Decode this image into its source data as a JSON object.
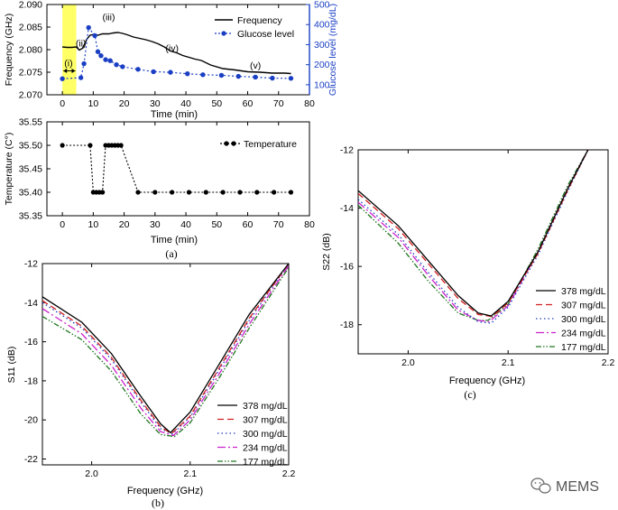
{
  "chart_data": [
    {
      "type": "line",
      "title": "",
      "xlabel": "Time (min)",
      "ylabel": "Frequency (GHz)",
      "ylabel_right": "Glucose level (mg/dL)",
      "xlim": [
        -5,
        80
      ],
      "ylim": [
        2.07,
        2.09
      ],
      "ylim_right": [
        50,
        500
      ],
      "xticks": [
        0,
        10,
        20,
        30,
        40,
        50,
        60,
        70,
        80
      ],
      "yticks": [
        2.07,
        2.075,
        2.08,
        2.085,
        2.09
      ],
      "ytick_labels": [
        "2.070",
        "2.075",
        "2.080",
        "2.085",
        "2.090"
      ],
      "yticks_right": [
        100,
        200,
        300,
        400,
        500
      ],
      "legend": [
        "Frequency",
        "Glucose level"
      ],
      "legend_position": "top-right",
      "colors": {
        "frequency": "#000000",
        "glucose": "#1a3fc4",
        "highlight": "#ffff66",
        "right_axis": "#1a3fc4"
      },
      "highlight_x": [
        0,
        4.5
      ],
      "annotations": [
        {
          "label": "(i)",
          "x": 2,
          "y": 2.0763
        },
        {
          "label": "(ii)",
          "x": 6,
          "y": 2.0807
        },
        {
          "label": "(iii)",
          "x": 15,
          "y": 2.0865
        },
        {
          "label": "(iv)",
          "x": 35.5,
          "y": 2.0796
        },
        {
          "label": "(v)",
          "x": 62.5,
          "y": 2.0758
        }
      ],
      "series": [
        {
          "name": "Frequency",
          "x": [
            0,
            1.5,
            3,
            4.5,
            5.5,
            6.5,
            8,
            9,
            10.5,
            11.5,
            13,
            15,
            16.5,
            18,
            19.5,
            21,
            23,
            25,
            27,
            29,
            31,
            33,
            35,
            37,
            39,
            41,
            43,
            45,
            48,
            52,
            56,
            60,
            64,
            68,
            72,
            74
          ],
          "y": [
            2.0806,
            2.0805,
            2.0805,
            2.0806,
            2.0799,
            2.0803,
            2.0824,
            2.0832,
            2.0834,
            2.0832,
            2.0835,
            2.0835,
            2.0837,
            2.0838,
            2.0836,
            2.0833,
            2.0828,
            2.0825,
            2.0822,
            2.0818,
            2.0813,
            2.0806,
            2.0797,
            2.0793,
            2.0787,
            2.0783,
            2.0779,
            2.0776,
            2.0766,
            2.0758,
            2.0755,
            2.0751,
            2.075,
            2.0748,
            2.0748,
            2.0747
          ]
        },
        {
          "name": "Glucose level",
          "x": [
            0,
            6,
            7,
            8.5,
            10.5,
            11.5,
            12.5,
            14,
            15.5,
            17.5,
            19.5,
            24.5,
            29.5,
            35,
            40.5,
            45.5,
            51.5,
            57,
            62.5,
            68,
            74
          ],
          "y": [
            130,
            135,
            205,
            385,
            345,
            265,
            245,
            225,
            220,
            200,
            190,
            177,
            165,
            162,
            155,
            150,
            147,
            142,
            138,
            133,
            132
          ]
        }
      ]
    },
    {
      "type": "scatter",
      "title": "",
      "xlabel": "Time (min)",
      "ylabel": "Temperature (C°)",
      "xlim": [
        -5,
        80
      ],
      "ylim": [
        35.35,
        35.55
      ],
      "xticks": [
        0,
        10,
        20,
        30,
        40,
        50,
        60,
        70,
        80
      ],
      "yticks": [
        35.35,
        35.4,
        35.45,
        35.5,
        35.55
      ],
      "ytick_labels": [
        "35.35",
        "35.40",
        "35.45",
        "35.50",
        "35.55"
      ],
      "legend": [
        "Temperature"
      ],
      "legend_position": "top-right",
      "series": [
        {
          "name": "Temperature",
          "x": [
            0,
            9,
            10,
            11,
            12,
            13,
            14,
            15,
            16,
            17,
            18,
            19,
            24.5,
            30,
            35.5,
            41,
            46.5,
            52,
            57.5,
            63,
            68.5,
            74
          ],
          "y": [
            35.5,
            35.5,
            35.4,
            35.4,
            35.4,
            35.4,
            35.5,
            35.5,
            35.5,
            35.5,
            35.5,
            35.5,
            35.4,
            35.4,
            35.4,
            35.4,
            35.4,
            35.4,
            35.4,
            35.4,
            35.4,
            35.4
          ]
        }
      ]
    },
    {
      "type": "line",
      "title": "",
      "xlabel": "Frequency (GHz)",
      "ylabel": "S11 (dB)",
      "xlim": [
        1.95,
        2.2
      ],
      "ylim": [
        -22.3,
        -12
      ],
      "xticks": [
        2.0,
        2.1,
        2.2
      ],
      "xtick_labels": [
        "2.0",
        "2.1",
        "2.2"
      ],
      "yticks": [
        -12,
        -14,
        -16,
        -18,
        -20,
        -22
      ],
      "legend_position": "bottom-right",
      "series": [
        {
          "name": "378 mg/dL",
          "color": "#000000",
          "dash": "",
          "x": [
            1.95,
            1.99,
            2.02,
            2.05,
            2.07,
            2.08,
            2.1,
            2.13,
            2.16,
            2.2
          ],
          "y": [
            -13.7,
            -15.0,
            -16.6,
            -18.8,
            -20.2,
            -20.65,
            -19.6,
            -17.1,
            -14.6,
            -12.0
          ]
        },
        {
          "name": "307 mg/dL",
          "color": "#d42020",
          "dash": "7,4",
          "x": [
            1.95,
            1.99,
            2.02,
            2.05,
            2.07,
            2.081,
            2.1,
            2.13,
            2.16,
            2.2
          ],
          "y": [
            -13.9,
            -15.2,
            -16.8,
            -19.0,
            -20.35,
            -20.7,
            -19.8,
            -17.3,
            -14.8,
            -12.0
          ]
        },
        {
          "name": "300 mg/dL",
          "color": "#1f3fbf",
          "dash": "1.5,3",
          "x": [
            1.95,
            1.99,
            2.02,
            2.05,
            2.07,
            2.082,
            2.1,
            2.13,
            2.16,
            2.2
          ],
          "y": [
            -14.0,
            -15.3,
            -16.9,
            -19.1,
            -20.45,
            -20.72,
            -19.85,
            -17.4,
            -14.9,
            -12.0
          ]
        },
        {
          "name": "234 mg/dL",
          "color": "#cc22cc",
          "dash": "9,3,2,3",
          "x": [
            1.95,
            1.99,
            2.02,
            2.05,
            2.07,
            2.083,
            2.1,
            2.13,
            2.16,
            2.2
          ],
          "y": [
            -14.3,
            -15.6,
            -17.2,
            -19.4,
            -20.6,
            -20.8,
            -20.0,
            -17.6,
            -15.1,
            -12.1
          ]
        },
        {
          "name": "177 mg/dL",
          "color": "#227722",
          "dash": "6,2,1.5,2,1.5,2",
          "x": [
            1.95,
            1.99,
            2.02,
            2.05,
            2.07,
            2.084,
            2.1,
            2.13,
            2.16,
            2.2
          ],
          "y": [
            -14.7,
            -15.9,
            -17.5,
            -19.7,
            -20.75,
            -20.85,
            -20.15,
            -17.8,
            -15.3,
            -12.2
          ]
        }
      ]
    },
    {
      "type": "line",
      "title": "",
      "xlabel": "Frequency (GHz)",
      "ylabel": "S22 (dB)",
      "xlim": [
        1.95,
        2.2
      ],
      "ylim": [
        -19,
        -12
      ],
      "xticks": [
        2.0,
        2.1,
        2.2
      ],
      "xtick_labels": [
        "2.0",
        "2.1",
        "2.2"
      ],
      "yticks": [
        -12,
        -14,
        -16,
        -18
      ],
      "legend_position": "bottom-right",
      "series": [
        {
          "name": "378 mg/dL",
          "color": "#000000",
          "dash": "",
          "x": [
            1.95,
            1.99,
            2.02,
            2.05,
            2.07,
            2.083,
            2.1,
            2.13,
            2.16,
            2.18
          ],
          "y": [
            -13.4,
            -14.6,
            -15.8,
            -17.0,
            -17.6,
            -17.7,
            -17.2,
            -15.5,
            -13.3,
            -12.0
          ]
        },
        {
          "name": "307 mg/dL",
          "color": "#d42020",
          "dash": "7,4",
          "x": [
            1.95,
            1.99,
            2.02,
            2.05,
            2.07,
            2.084,
            2.1,
            2.13,
            2.16,
            2.18
          ],
          "y": [
            -13.5,
            -14.7,
            -15.9,
            -17.1,
            -17.65,
            -17.72,
            -17.25,
            -15.55,
            -13.35,
            -12.0
          ]
        },
        {
          "name": "300 mg/dL",
          "color": "#1f3fbf",
          "dash": "1.5,3",
          "x": [
            1.95,
            1.99,
            2.02,
            2.05,
            2.07,
            2.083,
            2.1,
            2.13,
            2.16,
            2.18
          ],
          "y": [
            -13.7,
            -14.9,
            -16.2,
            -17.4,
            -17.9,
            -17.95,
            -17.4,
            -15.6,
            -13.4,
            -12.0
          ]
        },
        {
          "name": "234 mg/dL",
          "color": "#cc22cc",
          "dash": "9,3,2,3",
          "x": [
            1.95,
            1.99,
            2.02,
            2.05,
            2.07,
            2.081,
            2.1,
            2.13,
            2.16,
            2.18
          ],
          "y": [
            -13.8,
            -15.0,
            -16.3,
            -17.5,
            -17.85,
            -17.9,
            -17.35,
            -15.5,
            -13.3,
            -12.0
          ]
        },
        {
          "name": "177 mg/dL",
          "color": "#227722",
          "dash": "6,2,1.5,2,1.5,2",
          "x": [
            1.95,
            1.99,
            2.02,
            2.05,
            2.07,
            2.08,
            2.1,
            2.13,
            2.16,
            2.18
          ],
          "y": [
            -13.9,
            -15.2,
            -16.5,
            -17.6,
            -17.85,
            -17.85,
            -17.3,
            -15.4,
            -13.2,
            -12.0
          ]
        }
      ]
    }
  ],
  "captions": {
    "a": "(a)",
    "b": "(b)",
    "c": "(c)"
  },
  "watermark": {
    "icon": "wechat-icon",
    "text": "MEMS"
  }
}
